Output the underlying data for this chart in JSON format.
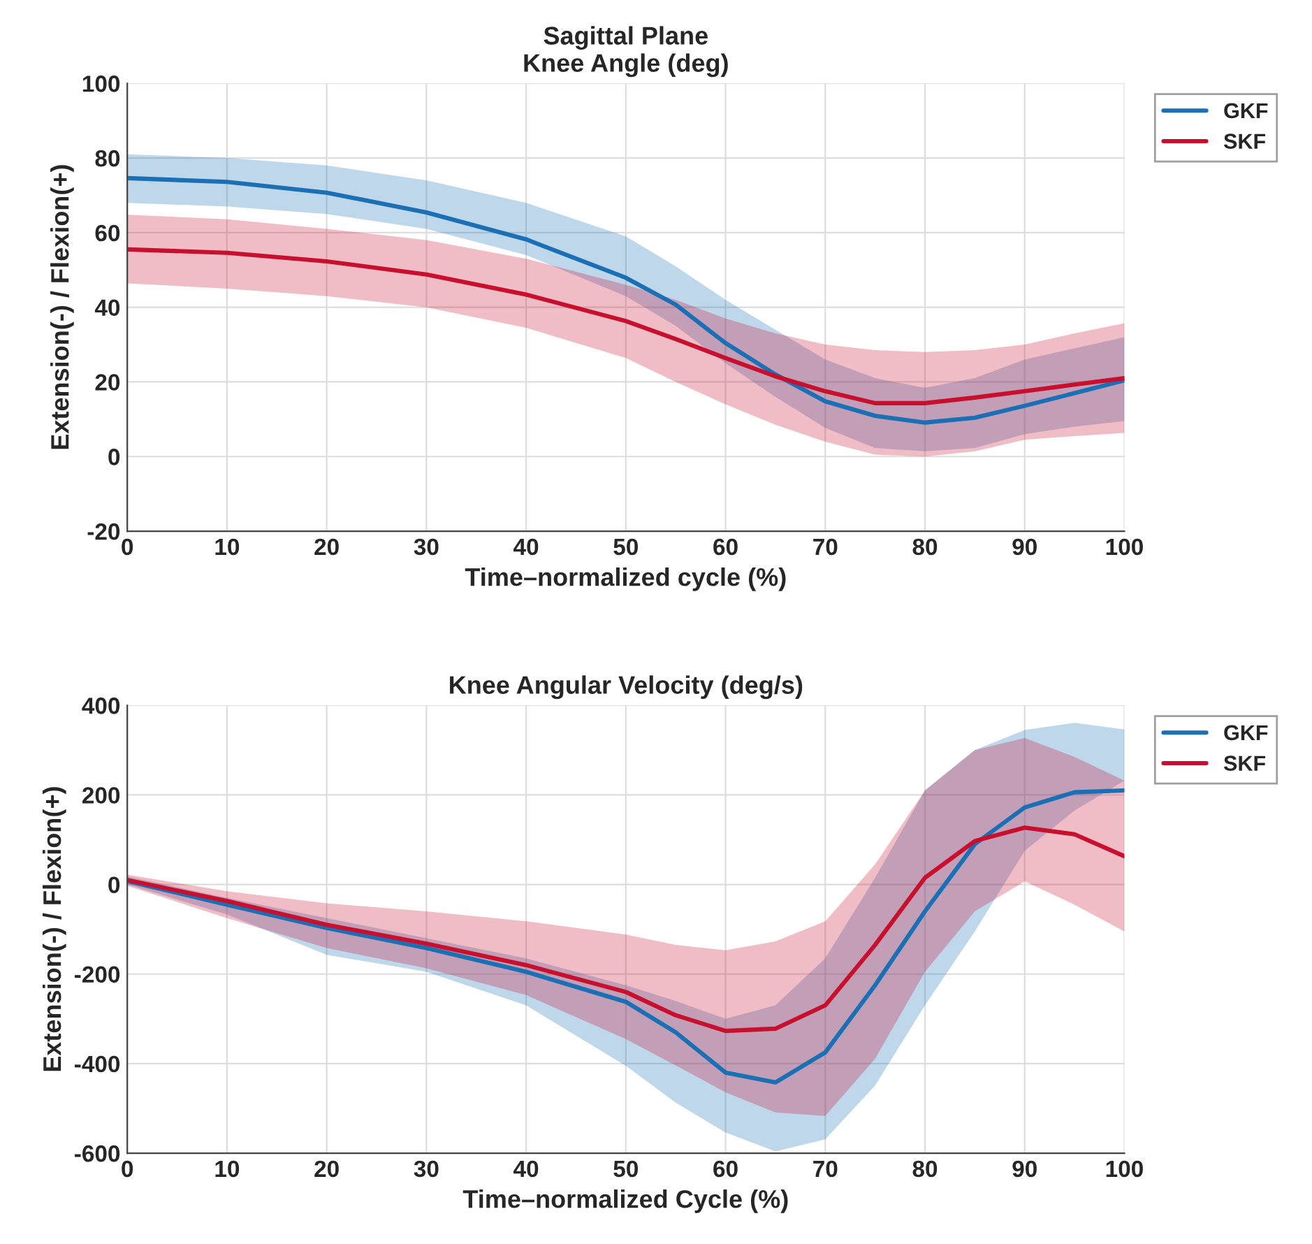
{
  "chart_data": [
    {
      "type": "line",
      "title": "Sagittal Plane\nKnee Angle (deg)",
      "xlabel": "Time–normalized cycle (%)",
      "ylabel": "Extension(-) / Flexion(+)",
      "x": [
        0,
        10,
        20,
        30,
        40,
        50,
        55,
        60,
        65,
        70,
        75,
        80,
        85,
        90,
        95,
        100
      ],
      "xlim": [
        0,
        100
      ],
      "xticks": [
        0,
        10,
        20,
        30,
        40,
        50,
        60,
        70,
        80,
        90,
        100
      ],
      "ylim": [
        -20,
        100
      ],
      "yticks": [
        -20,
        0,
        20,
        40,
        60,
        80,
        100
      ],
      "grid": true,
      "legend": "top right",
      "line_style": "solid",
      "marker": "none",
      "series": [
        {
          "name": "GKF",
          "color": "#1a6fb5",
          "values": [
            74.6,
            73.6,
            70.7,
            65.4,
            58.2,
            47.9,
            40.7,
            30.4,
            22,
            14.8,
            10.9,
            9.1,
            10.4,
            13.6,
            17,
            20.4
          ],
          "upper": [
            81,
            80,
            78,
            74,
            68,
            59,
            51,
            42,
            34,
            26,
            21,
            18.4,
            21,
            26,
            29,
            32
          ],
          "lower": [
            68,
            67,
            65,
            61,
            54,
            43,
            35,
            25,
            16,
            7.7,
            2.3,
            1.4,
            2.3,
            6,
            8,
            9.5
          ]
        },
        {
          "name": "SKF",
          "color": "#c8102e",
          "values": [
            55.5,
            54.6,
            52.3,
            48.8,
            43.4,
            36.3,
            31.5,
            26.4,
            21.5,
            17.5,
            14.3,
            14.3,
            15.8,
            17.5,
            19.3,
            21
          ],
          "upper": [
            64.8,
            63.6,
            61,
            58,
            53,
            46,
            42,
            37,
            33,
            30,
            28.5,
            28,
            28.5,
            30,
            33,
            35.7
          ],
          "lower": [
            46.4,
            45,
            43,
            40,
            34.5,
            26.4,
            20,
            14,
            8.5,
            4,
            0.5,
            0,
            1.4,
            4.5,
            5.5,
            6.3
          ]
        }
      ]
    },
    {
      "type": "line",
      "title": "Knee Angular Velocity (deg/s)",
      "xlabel": "Time–normalized Cycle (%)",
      "ylabel": "Extension(-) / Flexion(+)",
      "x": [
        0,
        10,
        20,
        30,
        40,
        50,
        55,
        60,
        65,
        70,
        75,
        80,
        85,
        90,
        95,
        100
      ],
      "xlim": [
        0,
        100
      ],
      "xticks": [
        0,
        10,
        20,
        30,
        40,
        50,
        60,
        70,
        80,
        90,
        100
      ],
      "ylim": [
        -600,
        400
      ],
      "yticks": [
        -600,
        -400,
        -200,
        0,
        200,
        400
      ],
      "grid": true,
      "legend": "top right",
      "line_style": "solid",
      "marker": "none",
      "series": [
        {
          "name": "GKF",
          "color": "#1a6fb5",
          "values": [
            7.5,
            -45,
            -97,
            -142,
            -195,
            -262,
            -330,
            -420,
            -442,
            -375,
            -225,
            -60,
            90,
            172,
            206,
            210
          ],
          "upper": [
            18,
            -30,
            -75,
            -120,
            -165,
            -225,
            -260,
            -300,
            -270,
            -165,
            15,
            210,
            300,
            345,
            361,
            346
          ],
          "lower": [
            0,
            -67,
            -157,
            -195,
            -270,
            -405,
            -487,
            -554,
            -596,
            -569,
            -449,
            -270,
            -105,
            75,
            165,
            232
          ]
        },
        {
          "name": "SKF",
          "color": "#c8102e",
          "values": [
            10,
            -37,
            -90,
            -132,
            -180,
            -240,
            -292,
            -327,
            -322,
            -270,
            -135,
            15,
            97,
            127,
            112,
            63
          ],
          "upper": [
            22,
            -15,
            -42,
            -60,
            -82,
            -112,
            -135,
            -147,
            -127,
            -82,
            45,
            210,
            300,
            327,
            285,
            232
          ],
          "lower": [
            -3,
            -75,
            -142,
            -187,
            -247,
            -345,
            -404,
            -464,
            -509,
            -517,
            -389,
            -195,
            -60,
            7,
            -45,
            -105
          ]
        }
      ]
    }
  ]
}
